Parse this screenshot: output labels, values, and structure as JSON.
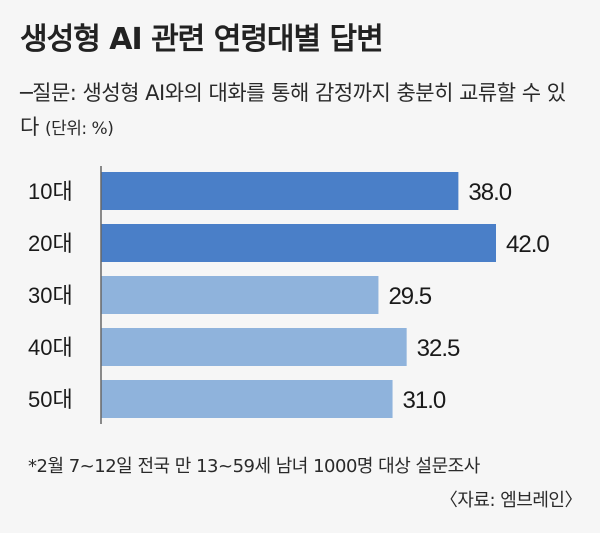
{
  "title": "생성형 AI 관련 연령대별 답변",
  "question": "─질문: 생성형 AI와의 대화를 통해 감정까지 충분히 교류할 수 있다",
  "unit": "(단위: %)",
  "note": "*2월 7~12일 전국 만 13~59세 남녀 1000명 대상 설문조사",
  "source": "〈자료: 엠브레인〉",
  "colors": {
    "highlight": "#4a7fc8",
    "normal": "#8fb3dc",
    "text": "#1a1a1a"
  },
  "chart_data": {
    "type": "bar",
    "orientation": "horizontal",
    "categories": [
      "10대",
      "20대",
      "30대",
      "40대",
      "50대"
    ],
    "values": [
      38.0,
      42.0,
      29.5,
      32.5,
      31.0
    ],
    "value_labels": [
      "38.0",
      "42.0",
      "29.5",
      "32.5",
      "31.0"
    ],
    "highlighted": [
      true,
      true,
      false,
      false,
      false
    ],
    "xlim": [
      0,
      42.0
    ],
    "grid": false,
    "axis_line": true
  }
}
